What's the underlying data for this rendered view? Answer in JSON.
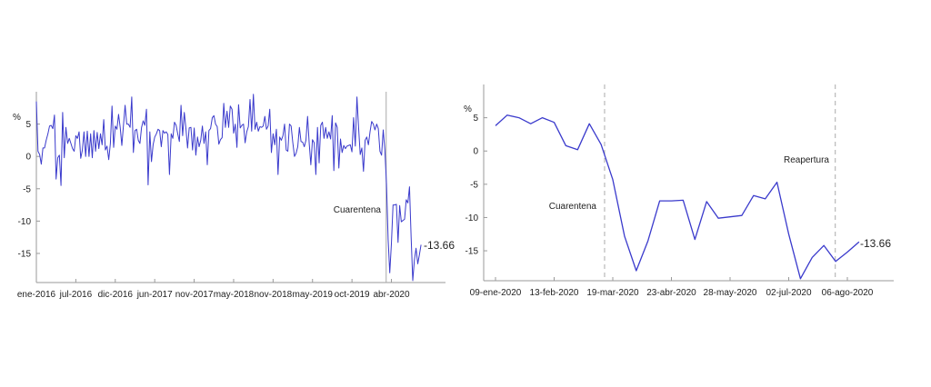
{
  "chart_data": [
    {
      "type": "line",
      "ylabel": "%",
      "ylim": [
        -19.5,
        10
      ],
      "yticks": [
        -15,
        -10,
        -5,
        0,
        5
      ],
      "xtick_labels": [
        "ene-2016",
        "jul-2016",
        "dic-2016",
        "jun-2017",
        "nov-2017",
        "may-2018",
        "nov-2018",
        "may-2019",
        "oct-2019",
        "abr-2020"
      ],
      "grid": false,
      "line_color": "#3a3acc",
      "end_label": "-13.66",
      "annotations": [
        {
          "text": "Cuarentena",
          "style": "solid-vertical-line"
        }
      ],
      "values": [
        8.5,
        0.8,
        0.3,
        -1.2,
        1.3,
        1.3,
        2.5,
        3.5,
        4.7,
        4.8,
        4.3,
        6.4,
        -3.5,
        -0.2,
        0.2,
        -4.5,
        6.8,
        -0.2,
        4.5,
        2.0,
        2.8,
        2.0,
        1.2,
        0.8,
        3.2,
        2.8,
        3.8,
        -0.3,
        1.0,
        3.8,
        0.0,
        3.9,
        0.0,
        3.5,
        -0.2,
        4.0,
        0.8,
        3.7,
        1.2,
        3.5,
        1.8,
        5.7,
        1.0,
        1.6,
        -0.5,
        2.0,
        7.8,
        1.4,
        4.7,
        4.2,
        6.5,
        4.5,
        1.7,
        4.8,
        7.9,
        5.0,
        5.0,
        4.5,
        9.2,
        0.6,
        4.0,
        4.2,
        2.5,
        2.0,
        4.5,
        5.5,
        4.8,
        7.3,
        -4.4,
        3.8,
        -0.8,
        1.8,
        3.0,
        3.5,
        4.2,
        4.0,
        1.5,
        4.0,
        3.6,
        3.8,
        3.4,
        -2.8,
        3.5,
        2.8,
        5.3,
        4.8,
        3.5,
        2.3,
        7.9,
        3.2,
        6.8,
        4.3,
        1.3,
        4.4,
        4.5,
        1.0,
        4.4,
        0.2,
        3.0,
        1.5,
        2.5,
        4.7,
        2.0,
        3.8,
        -1.3,
        4.0,
        4.3,
        6.0,
        6.3,
        5.0,
        4.6,
        1.9,
        2.6,
        2.9,
        8.2,
        4.5,
        7.0,
        4.5,
        7.8,
        7.3,
        3.6,
        5.0,
        1.4,
        8.0,
        4.4,
        4.8,
        5.0,
        2.1,
        3.8,
        4.6,
        8.8,
        3.9,
        9.6,
        4.2,
        5.3,
        3.9,
        4.6,
        4.5,
        4.7,
        6.2,
        4.2,
        4.7,
        7.3,
        0.6,
        3.5,
        1.8,
        4.2,
        -2.8,
        3.0,
        2.5,
        3.2,
        5.0,
        1.0,
        0.8,
        5.0,
        4.7,
        2.2,
        0.0,
        0.5,
        1.5,
        4.5,
        2.3,
        2.2,
        1.5,
        2.5,
        6.2,
        2.0,
        -1.3,
        2.6,
        2.1,
        -2.8,
        4.5,
        -1.0,
        4.8,
        5.3,
        2.8,
        4.5,
        2.8,
        3.8,
        2.7,
        6.3,
        -2.2,
        5.2,
        4.5,
        -1.8,
        2.7,
        0.6,
        1.7,
        1.2,
        1.6,
        1.7,
        1.8,
        0.7,
        6.0,
        1.6,
        9.2,
        4.5,
        0.3,
        1.3,
        -2.3,
        2.5,
        3.0,
        1.8,
        3.8,
        5.4,
        5.0,
        4.1,
        5.0,
        4.3,
        0.8,
        0.2,
        4.1,
        1.0,
        -4.3,
        -12.8,
        -18.0,
        -13.5,
        -7.5,
        -7.5,
        -7.4,
        -13.3,
        -7.6,
        -10.1,
        -9.9,
        -9.7,
        -6.7,
        -7.2,
        -4.7,
        -12.5,
        -19.2,
        -16.0,
        -14.2,
        -16.6,
        -15.2,
        -13.66
      ]
    },
    {
      "type": "line",
      "ylabel": "%",
      "ylim": [
        -19.5,
        10
      ],
      "yticks": [
        -15,
        -10,
        -5,
        0,
        5
      ],
      "xtick_labels": [
        "09-ene-2020",
        "13-feb-2020",
        "19-mar-2020",
        "23-abr-2020",
        "28-may-2020",
        "02-jul-2020",
        "06-ago-2020"
      ],
      "grid": false,
      "line_color": "#3a3acc",
      "end_label": "-13.66",
      "annotations": [
        {
          "text": "Cuarentena",
          "style": "dashed-vertical-line"
        },
        {
          "text": "Reapertura",
          "style": "dashed-vertical-line"
        }
      ],
      "x": [
        "09-ene-2020",
        "16-ene-2020",
        "23-ene-2020",
        "30-ene-2020",
        "06-feb-2020",
        "13-feb-2020",
        "20-feb-2020",
        "27-feb-2020",
        "05-mar-2020",
        "12-mar-2020",
        "19-mar-2020",
        "26-mar-2020",
        "02-abr-2020",
        "09-abr-2020",
        "16-abr-2020",
        "23-abr-2020",
        "30-abr-2020",
        "07-may-2020",
        "14-may-2020",
        "21-may-2020",
        "28-may-2020",
        "04-jun-2020",
        "11-jun-2020",
        "18-jun-2020",
        "25-jun-2020",
        "02-jul-2020",
        "09-jul-2020",
        "16-jul-2020",
        "23-jul-2020",
        "30-jul-2020",
        "06-ago-2020",
        "13-ago-2020"
      ],
      "values": [
        3.8,
        5.4,
        5.0,
        4.1,
        5.0,
        4.3,
        0.8,
        0.2,
        4.1,
        1.0,
        -4.3,
        -12.8,
        -18.0,
        -13.5,
        -7.5,
        -7.5,
        -7.4,
        -13.3,
        -7.6,
        -10.1,
        -9.9,
        -9.7,
        -6.7,
        -7.2,
        -4.7,
        -12.5,
        -19.2,
        -16.0,
        -14.2,
        -16.6,
        -15.2,
        -13.66
      ]
    }
  ]
}
